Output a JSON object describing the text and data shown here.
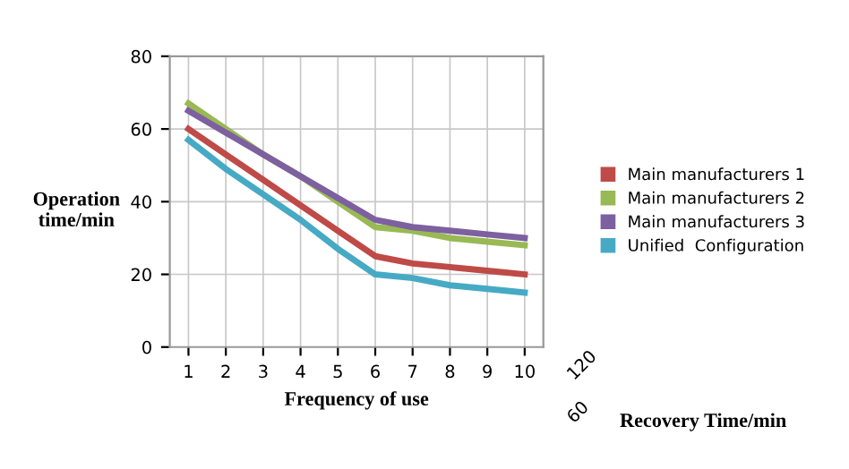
{
  "chart_data": {
    "type": "line",
    "xlabel": "Frequency of use",
    "ylabel": "Operation time/min",
    "categories": [
      "1",
      "2",
      "3",
      "4",
      "5",
      "6",
      "7",
      "8",
      "9",
      "10"
    ],
    "ylim": [
      0,
      80
    ],
    "yticks": [
      0,
      20,
      40,
      60,
      80
    ],
    "annotations": [
      "120",
      "60",
      "Recovery Time/min"
    ],
    "grid": true,
    "legend": "right",
    "marker": "none",
    "line_style": "solid",
    "series": [
      {
        "name": "Main manufacturers 1",
        "color": "#be4b48",
        "values": [
          60,
          53,
          46,
          39,
          32,
          25,
          23,
          22,
          21,
          20
        ]
      },
      {
        "name": "Main manufacturers 2",
        "color": "#98b954",
        "values": [
          67,
          60,
          53,
          47,
          40,
          33,
          32,
          30,
          29,
          28
        ]
      },
      {
        "name": "Main manufacturers 3",
        "color": "#7d60a0",
        "values": [
          65,
          59,
          53,
          47,
          41,
          35,
          33,
          32,
          31,
          30
        ]
      },
      {
        "name": "Unified  Configuration",
        "color": "#46aac5",
        "values": [
          57,
          49,
          42,
          35,
          27,
          20,
          19,
          17,
          16,
          15
        ]
      }
    ]
  }
}
